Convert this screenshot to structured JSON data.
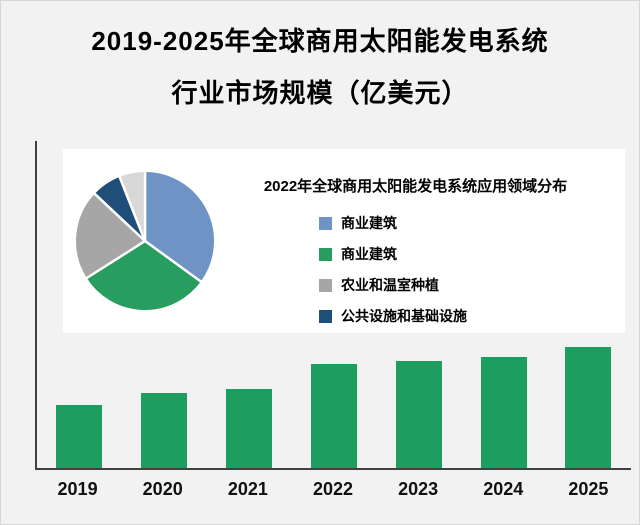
{
  "page": {
    "title_line1": "2019-2025年全球商用太阳能发电系统",
    "title_line2": "行业市场规模（亿美元）"
  },
  "chart_data": [
    {
      "type": "bar",
      "title": "2019-2025年全球商用太阳能发电系统行业市场规模（亿美元）",
      "categories": [
        "2019",
        "2020",
        "2021",
        "2022",
        "2023",
        "2024",
        "2025"
      ],
      "values": [
        64,
        76,
        80,
        105,
        108,
        112,
        122
      ],
      "xlabel": "",
      "ylabel": "",
      "ylim": [
        0,
        330
      ],
      "grid": false,
      "bar_color": "#1d9e60",
      "axis_color": "#404040"
    },
    {
      "type": "pie",
      "title": "2022年全球商用太阳能发电系统应用领域分布",
      "legend_position": "right",
      "slices": [
        {
          "label": "商业建筑",
          "value": 35,
          "color": "#6e93c4"
        },
        {
          "label": "商业建筑",
          "value": 31,
          "color": "#279e60"
        },
        {
          "label": "农业和温室种植",
          "value": 21,
          "color": "#a6a6a6"
        },
        {
          "label": "公共设施和基础设施",
          "value": 7,
          "color": "#1f4e79"
        },
        {
          "label": "",
          "value": 6,
          "color": "#d8d8d8"
        }
      ]
    }
  ]
}
